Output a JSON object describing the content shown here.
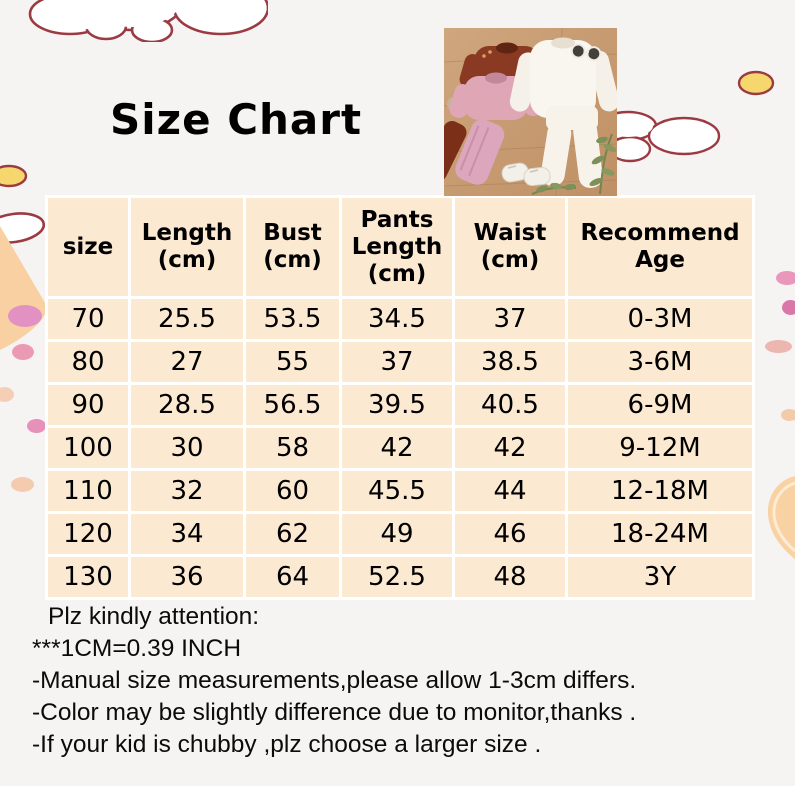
{
  "page": {
    "title": "Size Chart"
  },
  "photo": {
    "alt": "flat lay of knit baby sweater and pants sets in rust brown, pink and white, with baby shoes, sunglasses and green sprigs on a wooden board"
  },
  "chart_data": {
    "type": "table",
    "title": "Size Chart",
    "columns": [
      "size",
      "Length (cm)",
      "Bust (cm)",
      "Pants Length (cm)",
      "Waist (cm)",
      "Recommend Age"
    ],
    "columns_lines": [
      [
        "size"
      ],
      [
        "Length",
        "(cm)"
      ],
      [
        "Bust",
        "(cm)"
      ],
      [
        "Pants",
        "Length",
        "(cm)"
      ],
      [
        "Waist",
        "(cm)"
      ],
      [
        "Recommend",
        "Age"
      ]
    ],
    "rows": [
      [
        "70",
        "25.5",
        "53.5",
        "34.5",
        "37",
        "0-3M"
      ],
      [
        "80",
        "27",
        "55",
        "37",
        "38.5",
        "3-6M"
      ],
      [
        "90",
        "28.5",
        "56.5",
        "39.5",
        "40.5",
        "6-9M"
      ],
      [
        "100",
        "30",
        "58",
        "42",
        "42",
        "9-12M"
      ],
      [
        "110",
        "32",
        "60",
        "45.5",
        "44",
        "12-18M"
      ],
      [
        "120",
        "34",
        "62",
        "49",
        "46",
        "18-24M"
      ],
      [
        "130",
        "36",
        "64",
        "52.5",
        "48",
        "3Y"
      ]
    ],
    "layout": {
      "grid": "white 3px gaps between peach cells",
      "legend_position": "none"
    }
  },
  "notes": {
    "heading": "Plz kindly attention:",
    "conversion": "***1CM=0.39 INCH",
    "line1": "-Manual size measurements,please allow 1-3cm differs.",
    "line2": "-Color may be slightly difference due to monitor,thanks .",
    "line3": "-If your kid is chubby ,plz choose a larger size ."
  },
  "colors": {
    "page_bg": "#f5f4f2",
    "cell_bg": "#fce9d2",
    "grid": "#ffffff",
    "outline": "#9b3a42",
    "accent_yellow": "#f5d76e",
    "accent_peach": "#f8d0a2",
    "accent_pink": "#e291c3",
    "text": "#000000"
  }
}
